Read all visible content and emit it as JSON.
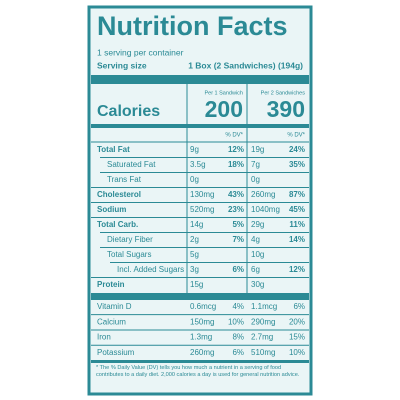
{
  "header": {
    "title": "Nutrition Facts",
    "servings": "1 serving per container",
    "serving_size_label": "Serving size",
    "serving_size": "1 Box (2 Sandwiches) (194g)"
  },
  "columns": [
    "Per 1 Sandwich",
    "Per 2 Sandwiches"
  ],
  "calories": {
    "label": "Calories",
    "values": [
      200,
      390
    ]
  },
  "dv_header": [
    "% DV*",
    "% DV*"
  ],
  "nutrients": [
    {
      "name": "Total Fat",
      "amounts": [
        "9g",
        "19g"
      ],
      "dv": [
        "12%",
        "24%"
      ],
      "bold": true,
      "level": 0
    },
    {
      "name": "Saturated Fat",
      "amounts": [
        "3.5g",
        "7g"
      ],
      "dv": [
        "18%",
        "35%"
      ],
      "bold": false,
      "level": 1
    },
    {
      "name": "Trans Fat",
      "amounts": [
        "0g",
        "0g"
      ],
      "dv": [
        null,
        null
      ],
      "bold": false,
      "level": 1
    },
    {
      "name": "Cholesterol",
      "amounts": [
        "130mg",
        "260mg"
      ],
      "dv": [
        "43%",
        "87%"
      ],
      "bold": true,
      "level": 0
    },
    {
      "name": "Sodium",
      "amounts": [
        "520mg",
        "1040mg"
      ],
      "dv": [
        "23%",
        "45%"
      ],
      "bold": true,
      "level": 0
    },
    {
      "name": "Total Carb.",
      "amounts": [
        "14g",
        "29g"
      ],
      "dv": [
        "5%",
        "11%"
      ],
      "bold": true,
      "level": 0
    },
    {
      "name": "Dietary Fiber",
      "amounts": [
        "2g",
        "4g"
      ],
      "dv": [
        "7%",
        "14%"
      ],
      "bold": false,
      "level": 1
    },
    {
      "name": "Total Sugars",
      "amounts": [
        "5g",
        "10g"
      ],
      "dv": [
        null,
        null
      ],
      "bold": false,
      "level": 1
    },
    {
      "name": "Incl. Added Sugars",
      "amounts": [
        "3g",
        "6g"
      ],
      "dv": [
        "6%",
        "12%"
      ],
      "bold": false,
      "level": 2
    },
    {
      "name": "Protein",
      "amounts": [
        "15g",
        "30g"
      ],
      "dv": [
        null,
        null
      ],
      "bold": true,
      "level": 0
    }
  ],
  "vitamins": [
    {
      "name": "Vitamin D",
      "amounts": [
        "0.6mcg",
        "1.1mcg"
      ],
      "dv": [
        "4%",
        "6%"
      ]
    },
    {
      "name": "Calcium",
      "amounts": [
        "150mg",
        "290mg"
      ],
      "dv": [
        "10%",
        "20%"
      ]
    },
    {
      "name": "Iron",
      "amounts": [
        "1.3mg",
        "2.7mg"
      ],
      "dv": [
        "8%",
        "15%"
      ]
    },
    {
      "name": "Potassium",
      "amounts": [
        "260mg",
        "510mg"
      ],
      "dv": [
        "6%",
        "10%"
      ]
    }
  ],
  "footnote": "* The % Daily Value (DV) tells you how much a nutrient in a serving of food contributes to a daily diet. 2,000 calories a day is used for general nutrition advice."
}
